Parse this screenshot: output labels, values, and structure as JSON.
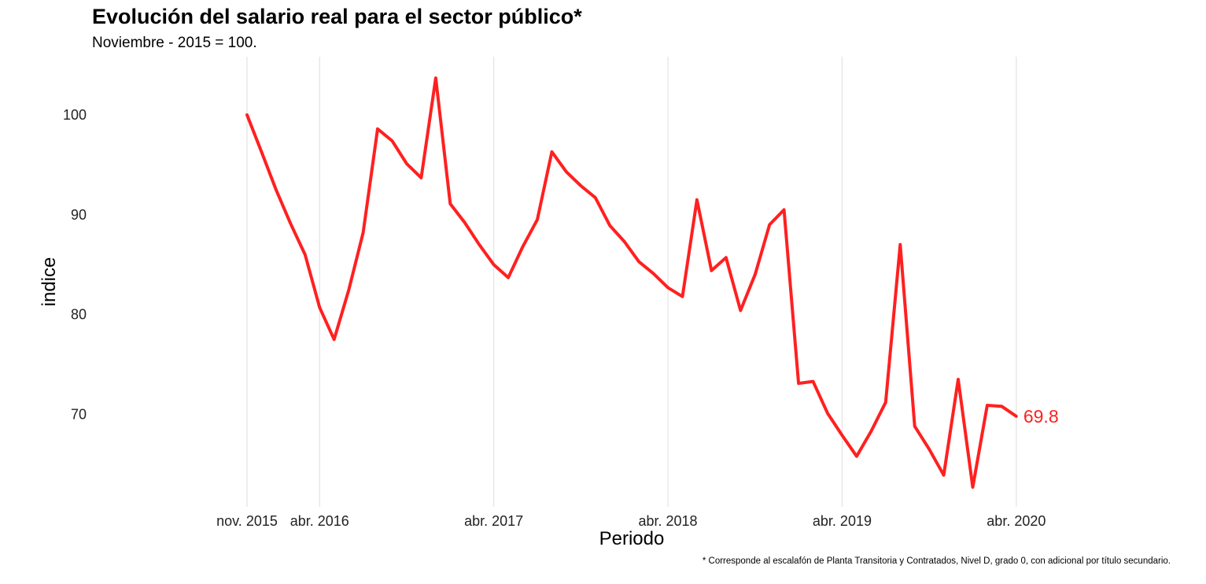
{
  "chart_data": {
    "type": "line",
    "title": "Evolución del salario real para el sector público*",
    "subtitle": "Noviembre - 2015 = 100.",
    "xlabel": "Periodo",
    "ylabel": "indice",
    "caption": "* Corresponde al escalafón de Planta Transitoria y Contratados, Nivel D, grado 0, con adicional por título secundario.",
    "x_tick_labels": [
      "nov. 2015",
      "abr. 2016",
      "abr. 2017",
      "abr. 2018",
      "abr. 2019",
      "abr. 2020"
    ],
    "y_tick_labels": [
      "70",
      "80",
      "90",
      "100"
    ],
    "ylim": [
      61,
      105
    ],
    "grid": "vertical",
    "line_color": "#ff2020",
    "end_label": "69.8",
    "x": [
      "2015-11",
      "2015-12",
      "2016-01",
      "2016-02",
      "2016-03",
      "2016-04",
      "2016-05",
      "2016-06",
      "2016-07",
      "2016-08",
      "2016-09",
      "2016-10",
      "2016-11",
      "2016-12",
      "2017-01",
      "2017-02",
      "2017-03",
      "2017-04",
      "2017-05",
      "2017-06",
      "2017-07",
      "2017-08",
      "2017-09",
      "2017-10",
      "2017-11",
      "2017-12",
      "2018-01",
      "2018-02",
      "2018-03",
      "2018-04",
      "2018-05",
      "2018-06",
      "2018-07",
      "2018-08",
      "2018-09",
      "2018-10",
      "2018-11",
      "2018-12",
      "2019-01",
      "2019-02",
      "2019-03",
      "2019-04",
      "2019-05",
      "2019-06",
      "2019-07",
      "2019-08",
      "2019-09",
      "2019-10",
      "2019-11",
      "2019-12",
      "2020-01",
      "2020-02",
      "2020-03",
      "2020-04"
    ],
    "values": [
      100.0,
      96.3,
      92.5,
      89.1,
      86.0,
      80.7,
      77.5,
      82.4,
      88.2,
      98.6,
      97.4,
      95.1,
      93.7,
      103.7,
      91.1,
      89.2,
      87.0,
      85.0,
      83.7,
      86.8,
      89.5,
      96.3,
      94.3,
      92.9,
      91.7,
      88.9,
      87.3,
      85.3,
      84.1,
      82.7,
      81.8,
      91.5,
      84.4,
      85.7,
      80.4,
      84.0,
      89.0,
      90.5,
      73.1,
      73.3,
      70.1,
      67.9,
      65.8,
      68.3,
      71.2,
      87.0,
      68.8,
      66.5,
      63.9,
      73.5,
      62.7,
      70.9,
      70.8,
      69.8
    ]
  }
}
